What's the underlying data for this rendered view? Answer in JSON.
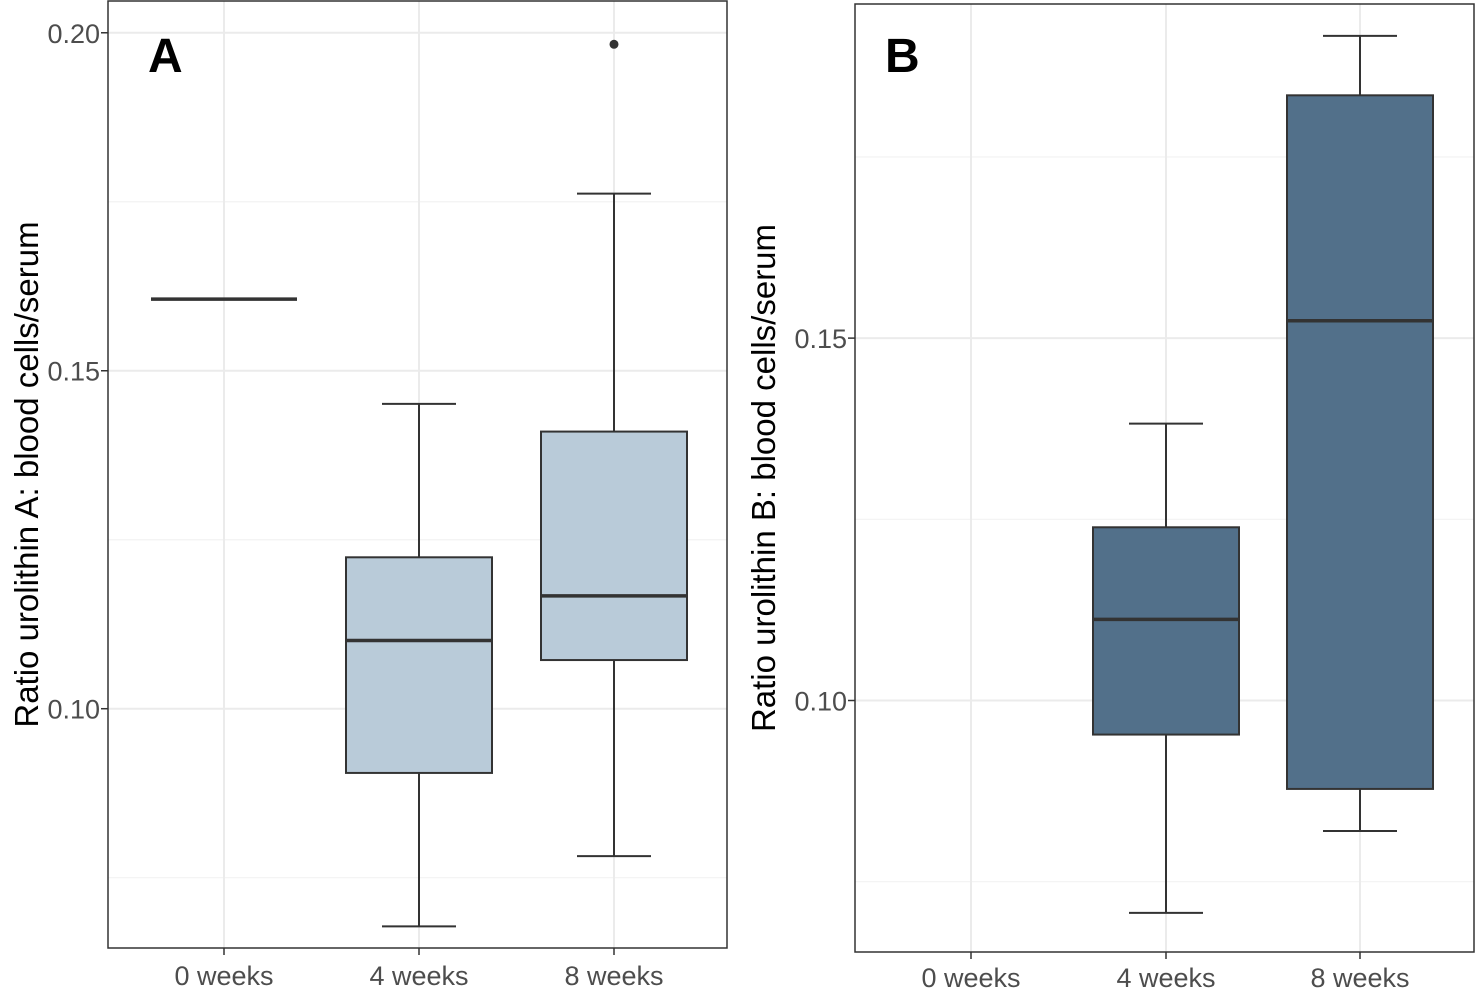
{
  "chart_data": [
    {
      "type": "box",
      "panel_label": "A",
      "ylabel": "Ratio urolithin A: blood cells/serum",
      "xlabel": "",
      "categories": [
        "0 weeks",
        "4 weeks",
        "8 weeks"
      ],
      "ylim": [
        0.0646,
        0.2047
      ],
      "yticks": [
        0.1,
        0.15,
        0.2
      ],
      "ytick_labels": [
        "0.10",
        "0.15",
        "0.20"
      ],
      "grid": true,
      "fill_color": "#b9cbd9",
      "boxes": [
        {
          "category": "0 weeks",
          "min": 0.1606,
          "q1": 0.1606,
          "median": 0.1606,
          "q3": 0.1606,
          "max": 0.1606,
          "outliers": []
        },
        {
          "category": "4 weeks",
          "min": 0.0678,
          "q1": 0.0905,
          "median": 0.1101,
          "q3": 0.1224,
          "max": 0.1451,
          "outliers": []
        },
        {
          "category": "8 weeks",
          "min": 0.0782,
          "q1": 0.1072,
          "median": 0.1167,
          "q3": 0.141,
          "max": 0.1762,
          "outliers": [
            0.1983
          ]
        }
      ]
    },
    {
      "type": "box",
      "panel_label": "B",
      "ylabel": "Ratio urolithin B: blood cells/serum",
      "xlabel": "",
      "categories": [
        "0 weeks",
        "4 weeks",
        "8 weeks"
      ],
      "ylim": [
        0.0653,
        0.1961
      ],
      "yticks": [
        0.1,
        0.15
      ],
      "ytick_labels": [
        "0.10",
        "0.15"
      ],
      "grid": true,
      "fill_color": "#52708a",
      "boxes": [
        {
          "category": "0 weeks",
          "min": null,
          "q1": null,
          "median": null,
          "q3": null,
          "max": null,
          "outliers": []
        },
        {
          "category": "4 weeks",
          "min": 0.0707,
          "q1": 0.0953,
          "median": 0.1112,
          "q3": 0.1239,
          "max": 0.1382,
          "outliers": []
        },
        {
          "category": "8 weeks",
          "min": 0.082,
          "q1": 0.0878,
          "median": 0.1524,
          "q3": 0.1835,
          "max": 0.1917,
          "outliers": []
        }
      ]
    }
  ]
}
